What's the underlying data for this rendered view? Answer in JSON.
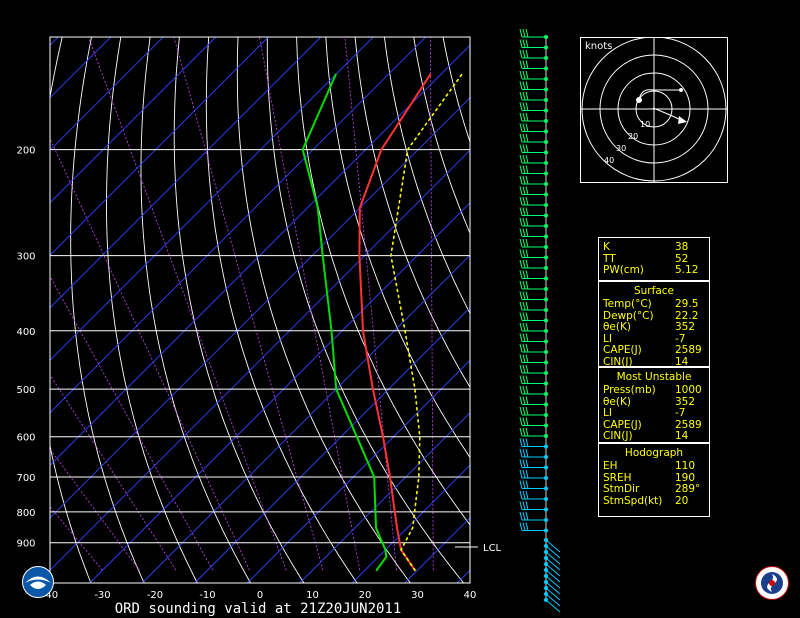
{
  "title": "ORD sounding valid at 21Z20JUN2011",
  "lcl_label": "LCL",
  "hodograph": {
    "units_label": "knots",
    "ring_labels": [
      "10",
      "20",
      "30",
      "40"
    ]
  },
  "indices": {
    "top": [
      {
        "k": "K",
        "v": "38"
      },
      {
        "k": "TT",
        "v": "52"
      },
      {
        "k": "PW(cm)",
        "v": "5.12"
      }
    ],
    "surface": {
      "header": "Surface",
      "rows": [
        {
          "k": "Temp(°C)",
          "v": "29.5"
        },
        {
          "k": "Dewp(°C)",
          "v": "22.2"
        },
        {
          "k": "θe(K)",
          "v": "352"
        },
        {
          "k": "LI",
          "v": "-7"
        },
        {
          "k": "CAPE(J)",
          "v": "2589"
        },
        {
          "k": "CIN(J)",
          "v": "14"
        }
      ]
    },
    "most_unstable": {
      "header": "Most Unstable",
      "rows": [
        {
          "k": "Press(mb)",
          "v": "1000"
        },
        {
          "k": "θe(K)",
          "v": "352"
        },
        {
          "k": "LI",
          "v": "-7"
        },
        {
          "k": "CAPE(J)",
          "v": "2589"
        },
        {
          "k": "CIN(J)",
          "v": "14"
        }
      ]
    },
    "hodograph": {
      "header": "Hodograph",
      "rows": [
        {
          "k": "EH",
          "v": "110"
        },
        {
          "k": "SREH",
          "v": "190"
        },
        {
          "k": "StmDir",
          "v": "289°"
        },
        {
          "k": "StmSpd(kt)",
          "v": "20"
        }
      ]
    }
  },
  "chart_data": {
    "type": "line",
    "chart_kind": "skew-T log-p",
    "title": "ORD sounding valid at 21Z20JUN2011",
    "x_axis": {
      "label": "",
      "ticks": [
        -40,
        -30,
        -20,
        -10,
        0,
        10,
        20,
        30,
        40
      ],
      "range": [
        -40,
        40
      ],
      "units": "°C at 1000 mb"
    },
    "y_axis": {
      "label": "",
      "ticks": [
        200,
        300,
        400,
        500,
        600,
        700,
        800,
        900
      ],
      "range": [
        1050,
        130
      ],
      "scale": "log"
    },
    "series": [
      {
        "pressure": [
          1000,
          925,
          850,
          700,
          600,
          500,
          400,
          300,
          250,
          200,
          150
        ],
        "values": [
          29.5,
          23,
          18,
          7,
          -2,
          -13,
          -26,
          -41,
          -50,
          -57,
          -62
        ],
        "color": "#ff3333"
      },
      {
        "pressure": [
          1000,
          950,
          925,
          850,
          700,
          600,
          500,
          400,
          300,
          250,
          200,
          150
        ],
        "values": [
          22.2,
          21.5,
          20,
          14,
          4,
          -7,
          -20,
          -32,
          -48,
          -58,
          -72,
          -80
        ],
        "color": "#00dd00"
      },
      {
        "pressure": [
          1000,
          925,
          850,
          700,
          600,
          500,
          400,
          300,
          200,
          150
        ],
        "values": [
          29.5,
          23,
          21,
          12.5,
          5,
          -5,
          -18,
          -35,
          -52,
          -56
        ],
        "color": "#ffff00"
      }
    ],
    "annotations": [
      {
        "text": "LCL",
        "pressure": 915
      }
    ],
    "wind_profile_colors": [
      "#00ff66",
      "#00ccff"
    ]
  }
}
